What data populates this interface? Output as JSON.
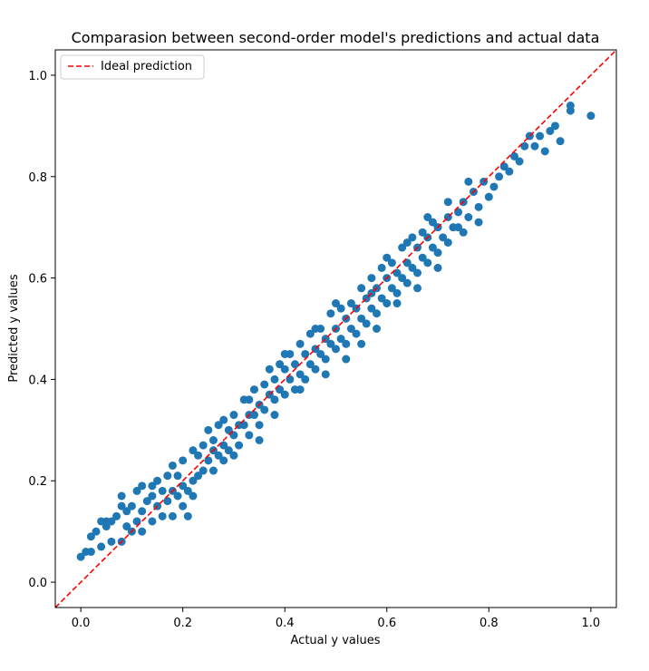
{
  "chart_data": {
    "type": "scatter",
    "title": "Comparasion between second-order model's predictions and actual data",
    "xlabel": "Actual y values",
    "ylabel": "Predicted y values",
    "xlim": [
      -0.05,
      1.05
    ],
    "ylim": [
      -0.05,
      1.05
    ],
    "xticks": [
      0.0,
      0.2,
      0.4,
      0.6,
      0.8,
      1.0
    ],
    "xtick_labels": [
      "0.0",
      "0.2",
      "0.4",
      "0.6",
      "0.8",
      "1.0"
    ],
    "yticks": [
      0.0,
      0.2,
      0.4,
      0.6,
      0.8,
      1.0
    ],
    "ytick_labels": [
      "0.0",
      "0.2",
      "0.4",
      "0.6",
      "0.8",
      "1.0"
    ],
    "grid": false,
    "legend": {
      "location": "top-left",
      "entries": [
        {
          "label": "Ideal prediction",
          "color": "#ff0000",
          "style": "dashed"
        }
      ]
    },
    "reference_line": {
      "x": [
        -0.05,
        1.05
      ],
      "y": [
        -0.05,
        1.05
      ]
    },
    "series": [
      {
        "color": "#1f77b4",
        "points": [
          [
            0.0,
            0.05
          ],
          [
            0.01,
            0.06
          ],
          [
            0.02,
            0.06
          ],
          [
            0.02,
            0.09
          ],
          [
            0.03,
            0.1
          ],
          [
            0.04,
            0.07
          ],
          [
            0.04,
            0.12
          ],
          [
            0.05,
            0.11
          ],
          [
            0.05,
            0.12
          ],
          [
            0.06,
            0.08
          ],
          [
            0.06,
            0.12
          ],
          [
            0.07,
            0.13
          ],
          [
            0.08,
            0.08
          ],
          [
            0.08,
            0.15
          ],
          [
            0.08,
            0.17
          ],
          [
            0.09,
            0.11
          ],
          [
            0.09,
            0.14
          ],
          [
            0.1,
            0.1
          ],
          [
            0.1,
            0.15
          ],
          [
            0.11,
            0.12
          ],
          [
            0.11,
            0.18
          ],
          [
            0.12,
            0.14
          ],
          [
            0.12,
            0.19
          ],
          [
            0.13,
            0.16
          ],
          [
            0.14,
            0.12
          ],
          [
            0.14,
            0.19
          ],
          [
            0.15,
            0.15
          ],
          [
            0.15,
            0.2
          ],
          [
            0.16,
            0.13
          ],
          [
            0.16,
            0.18
          ],
          [
            0.17,
            0.21
          ],
          [
            0.17,
            0.16
          ],
          [
            0.18,
            0.18
          ],
          [
            0.18,
            0.23
          ],
          [
            0.19,
            0.17
          ],
          [
            0.19,
            0.21
          ],
          [
            0.2,
            0.15
          ],
          [
            0.2,
            0.24
          ],
          [
            0.21,
            0.18
          ],
          [
            0.21,
            0.13
          ],
          [
            0.22,
            0.26
          ],
          [
            0.22,
            0.2
          ],
          [
            0.23,
            0.25
          ],
          [
            0.23,
            0.21
          ],
          [
            0.24,
            0.22
          ],
          [
            0.24,
            0.27
          ],
          [
            0.25,
            0.24
          ],
          [
            0.25,
            0.3
          ],
          [
            0.26,
            0.22
          ],
          [
            0.26,
            0.28
          ],
          [
            0.27,
            0.25
          ],
          [
            0.27,
            0.31
          ],
          [
            0.28,
            0.27
          ],
          [
            0.28,
            0.24
          ],
          [
            0.29,
            0.3
          ],
          [
            0.29,
            0.26
          ],
          [
            0.3,
            0.33
          ],
          [
            0.3,
            0.29
          ],
          [
            0.31,
            0.31
          ],
          [
            0.31,
            0.27
          ],
          [
            0.32,
            0.36
          ],
          [
            0.32,
            0.31
          ],
          [
            0.33,
            0.33
          ],
          [
            0.33,
            0.29
          ],
          [
            0.34,
            0.38
          ],
          [
            0.34,
            0.33
          ],
          [
            0.35,
            0.35
          ],
          [
            0.35,
            0.31
          ],
          [
            0.36,
            0.39
          ],
          [
            0.36,
            0.34
          ],
          [
            0.37,
            0.37
          ],
          [
            0.37,
            0.42
          ],
          [
            0.38,
            0.36
          ],
          [
            0.38,
            0.4
          ],
          [
            0.39,
            0.38
          ],
          [
            0.39,
            0.43
          ],
          [
            0.4,
            0.37
          ],
          [
            0.4,
            0.42
          ],
          [
            0.41,
            0.4
          ],
          [
            0.41,
            0.45
          ],
          [
            0.42,
            0.38
          ],
          [
            0.42,
            0.43
          ],
          [
            0.43,
            0.41
          ],
          [
            0.43,
            0.47
          ],
          [
            0.44,
            0.4
          ],
          [
            0.44,
            0.45
          ],
          [
            0.45,
            0.43
          ],
          [
            0.45,
            0.49
          ],
          [
            0.46,
            0.42
          ],
          [
            0.46,
            0.46
          ],
          [
            0.47,
            0.45
          ],
          [
            0.47,
            0.5
          ],
          [
            0.48,
            0.44
          ],
          [
            0.48,
            0.48
          ],
          [
            0.49,
            0.47
          ],
          [
            0.49,
            0.53
          ],
          [
            0.5,
            0.46
          ],
          [
            0.5,
            0.5
          ],
          [
            0.51,
            0.48
          ],
          [
            0.51,
            0.54
          ],
          [
            0.52,
            0.47
          ],
          [
            0.52,
            0.52
          ],
          [
            0.53,
            0.5
          ],
          [
            0.53,
            0.55
          ],
          [
            0.54,
            0.49
          ],
          [
            0.54,
            0.54
          ],
          [
            0.55,
            0.52
          ],
          [
            0.55,
            0.58
          ],
          [
            0.56,
            0.51
          ],
          [
            0.56,
            0.56
          ],
          [
            0.57,
            0.54
          ],
          [
            0.57,
            0.6
          ],
          [
            0.58,
            0.53
          ],
          [
            0.58,
            0.58
          ],
          [
            0.59,
            0.56
          ],
          [
            0.59,
            0.62
          ],
          [
            0.6,
            0.55
          ],
          [
            0.6,
            0.6
          ],
          [
            0.61,
            0.58
          ],
          [
            0.61,
            0.63
          ],
          [
            0.62,
            0.57
          ],
          [
            0.62,
            0.61
          ],
          [
            0.63,
            0.6
          ],
          [
            0.63,
            0.66
          ],
          [
            0.64,
            0.59
          ],
          [
            0.64,
            0.63
          ],
          [
            0.65,
            0.62
          ],
          [
            0.65,
            0.68
          ],
          [
            0.66,
            0.61
          ],
          [
            0.66,
            0.66
          ],
          [
            0.67,
            0.64
          ],
          [
            0.67,
            0.69
          ],
          [
            0.68,
            0.63
          ],
          [
            0.68,
            0.68
          ],
          [
            0.69,
            0.66
          ],
          [
            0.69,
            0.71
          ],
          [
            0.7,
            0.65
          ],
          [
            0.7,
            0.7
          ],
          [
            0.71,
            0.68
          ],
          [
            0.72,
            0.72
          ],
          [
            0.72,
            0.67
          ],
          [
            0.73,
            0.7
          ],
          [
            0.74,
            0.73
          ],
          [
            0.75,
            0.69
          ],
          [
            0.75,
            0.75
          ],
          [
            0.76,
            0.72
          ],
          [
            0.77,
            0.77
          ],
          [
            0.78,
            0.74
          ],
          [
            0.79,
            0.79
          ],
          [
            0.8,
            0.76
          ],
          [
            0.81,
            0.78
          ],
          [
            0.82,
            0.8
          ],
          [
            0.83,
            0.82
          ],
          [
            0.84,
            0.81
          ],
          [
            0.85,
            0.84
          ],
          [
            0.86,
            0.83
          ],
          [
            0.87,
            0.86
          ],
          [
            0.88,
            0.88
          ],
          [
            0.89,
            0.86
          ],
          [
            0.9,
            0.88
          ],
          [
            0.91,
            0.85
          ],
          [
            0.92,
            0.89
          ],
          [
            0.93,
            0.9
          ],
          [
            0.94,
            0.87
          ],
          [
            0.96,
            0.93
          ],
          [
            0.96,
            0.94
          ],
          [
            1.0,
            0.92
          ],
          [
            0.12,
            0.1
          ],
          [
            0.14,
            0.17
          ],
          [
            0.18,
            0.13
          ],
          [
            0.2,
            0.19
          ],
          [
            0.22,
            0.17
          ],
          [
            0.26,
            0.26
          ],
          [
            0.28,
            0.32
          ],
          [
            0.3,
            0.25
          ],
          [
            0.33,
            0.36
          ],
          [
            0.35,
            0.28
          ],
          [
            0.38,
            0.33
          ],
          [
            0.4,
            0.45
          ],
          [
            0.43,
            0.38
          ],
          [
            0.46,
            0.5
          ],
          [
            0.48,
            0.41
          ],
          [
            0.5,
            0.55
          ],
          [
            0.52,
            0.44
          ],
          [
            0.55,
            0.47
          ],
          [
            0.57,
            0.57
          ],
          [
            0.58,
            0.5
          ],
          [
            0.6,
            0.64
          ],
          [
            0.62,
            0.55
          ],
          [
            0.64,
            0.67
          ],
          [
            0.66,
            0.58
          ],
          [
            0.68,
            0.72
          ],
          [
            0.7,
            0.62
          ],
          [
            0.72,
            0.75
          ],
          [
            0.74,
            0.7
          ],
          [
            0.76,
            0.79
          ],
          [
            0.78,
            0.71
          ]
        ]
      }
    ]
  }
}
